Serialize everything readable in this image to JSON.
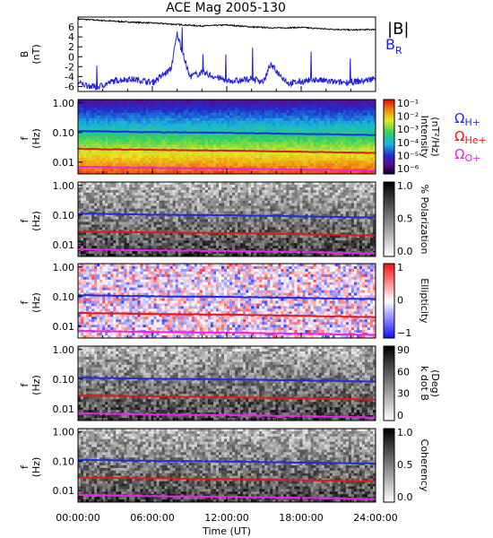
{
  "chart_data": {
    "type": "spectrogram",
    "title": "ACE Mag 2005-130",
    "xlabel": "Time (UT)",
    "x_ticks": [
      "00:00:00",
      "06:00:00",
      "12:00:00",
      "18:00:00",
      "24:00:00"
    ],
    "x_range_hours": [
      0,
      24
    ],
    "panels": [
      {
        "id": "field",
        "ylabel": [
          "B",
          "(nT)"
        ],
        "ylim": [
          -7,
          8
        ],
        "y_ticks": [
          6,
          4,
          2,
          0,
          -2,
          -4,
          -6
        ],
        "series": [
          {
            "name": "|B|",
            "color": "#000000",
            "t": [
              0,
              2,
              4,
              6,
              8,
              10,
              12,
              14,
              16,
              18,
              20,
              22,
              24
            ],
            "values": [
              7.6,
              7.3,
              7.0,
              6.8,
              6.5,
              6.2,
              6.4,
              6.0,
              5.8,
              5.9,
              5.6,
              5.4,
              5.5
            ]
          },
          {
            "name": "B",
            "subscript": "R",
            "color": "#2020dd",
            "t": [
              0,
              1.5,
              3,
              4,
              5,
              6,
              7.5,
              8,
              9,
              10,
              12,
              13,
              14,
              15,
              15.5,
              17,
              19,
              21,
              23,
              24
            ],
            "values": [
              -5.3,
              -6.2,
              -4.8,
              -4.5,
              -4.7,
              -5.2,
              -2.5,
              4.6,
              -4.0,
              -3.2,
              -4.8,
              -4.9,
              -4.4,
              -5.0,
              -1.6,
              -5.4,
              -4.6,
              -5.2,
              -4.9,
              -4.3
            ]
          }
        ]
      },
      {
        "id": "intensity",
        "ylabel": [
          "f",
          "(Hz)"
        ],
        "y_ticks": [
          "1.00",
          "0.10",
          "0.01"
        ],
        "colorbar": {
          "label": "Intensity",
          "unit": "(nT²/Hz)",
          "ticks": [
            "10⁻¹",
            "10⁻²",
            "10⁻³",
            "10⁻⁴",
            "10⁻⁵",
            "10⁻⁶"
          ]
        }
      },
      {
        "id": "polarization",
        "ylabel": [
          "f",
          "(Hz)"
        ],
        "y_ticks": [
          "1.00",
          "0.10",
          "0.01"
        ],
        "colorbar": {
          "label": "% Polarization",
          "ticks": [
            "1.0",
            "0.5",
            "0.0"
          ]
        }
      },
      {
        "id": "ellipticity",
        "ylabel": [
          "f",
          "(Hz)"
        ],
        "y_ticks": [
          "1.00",
          "0.10",
          "0.01"
        ],
        "colorbar": {
          "label": "Ellipticity",
          "ticks": [
            "1",
            "0",
            "−1"
          ]
        }
      },
      {
        "id": "kdotb",
        "ylabel": [
          "f",
          "(Hz)"
        ],
        "y_ticks": [
          "1.00",
          "0.10",
          "0.01"
        ],
        "colorbar": {
          "label": "k dot B",
          "unit": "(Deg)",
          "ticks": [
            "90",
            "60",
            "30",
            "0"
          ]
        }
      },
      {
        "id": "coherency",
        "ylabel": [
          "f",
          "(Hz)"
        ],
        "y_ticks": [
          "1.00",
          "0.10",
          "0.01"
        ],
        "colorbar": {
          "label": "Coherency",
          "ticks": [
            "1.0",
            "0.5",
            "0.0"
          ]
        }
      }
    ],
    "gyrofrequency_lines": [
      {
        "name": "Ω",
        "subscript": "H+",
        "color": "#1f2de0",
        "t": [
          0,
          6,
          12,
          18,
          24
        ],
        "f_hz": [
          0.112,
          0.103,
          0.098,
          0.09,
          0.082
        ]
      },
      {
        "name": "Ω",
        "subscript": "He+",
        "color": "#e01a1a",
        "t": [
          0,
          6,
          12,
          18,
          24
        ],
        "f_hz": [
          0.028,
          0.026,
          0.0245,
          0.0225,
          0.0205
        ]
      },
      {
        "name": "Ω",
        "subscript": "O+",
        "color": "#ee22ee",
        "t": [
          0,
          6,
          12,
          18,
          24
        ],
        "f_hz": [
          0.007,
          0.0064,
          0.0061,
          0.0056,
          0.0051
        ]
      }
    ],
    "f_range_hz": [
      0.004,
      1.3
    ],
    "y_scale": "log"
  }
}
